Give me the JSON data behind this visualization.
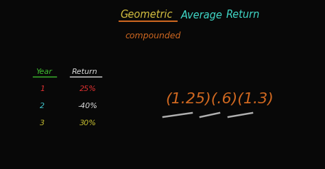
{
  "bg_color": "#080808",
  "title_geometric": "Geometric",
  "title_average": "Average",
  "title_return": "Return",
  "title_geometric_color": "#d4c040",
  "title_average_color": "#40d8c8",
  "title_return_color": "#40d8c8",
  "underline_color": "#d06820",
  "compounded_text": "compounded",
  "compounded_color": "#d06820",
  "year_label": "Year",
  "return_label": "Return",
  "year_header_color": "#40c030",
  "return_header_color": "#e0e0e0",
  "years": [
    "1",
    "2",
    "3"
  ],
  "year_colors": [
    "#e03030",
    "#40c8d0",
    "#c8c030"
  ],
  "returns": [
    "25%",
    "-40%",
    "30%"
  ],
  "return_colors": [
    "#e03030",
    "#e0e0e0",
    "#c8c030"
  ],
  "formula_text": "(1.25)(.6)(1.3)",
  "formula_color": "#d06820",
  "dash_color": "#b0b0b0"
}
